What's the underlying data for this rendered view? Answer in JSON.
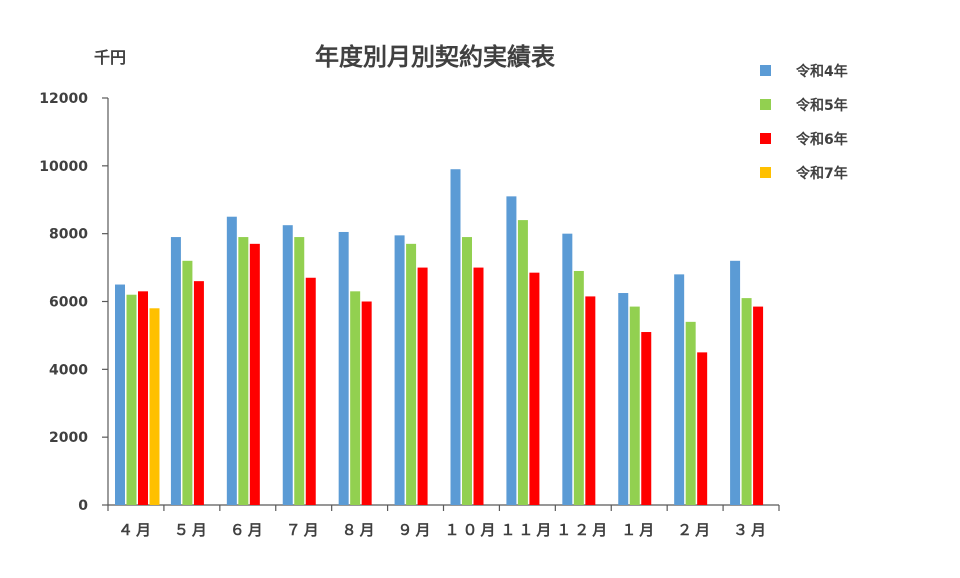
{
  "chart_data": {
    "type": "bar",
    "title": "年度別月別契約実績表",
    "unit_label": "千円",
    "ylim": [
      0,
      12000
    ],
    "yticks": [
      "0",
      "2000",
      "4000",
      "6000",
      "8000",
      "10000",
      "12000"
    ],
    "categories": [
      "４月",
      "５月",
      "６月",
      "７月",
      "８月",
      "９月",
      "１０月",
      "１１月",
      "１２月",
      "１月",
      "２月",
      "３月"
    ],
    "series": [
      {
        "name": "令和4年",
        "color": "#5B9BD5",
        "values": [
          6500,
          7900,
          8500,
          8250,
          8050,
          7950,
          9900,
          9100,
          8000,
          6250,
          6800,
          7200
        ]
      },
      {
        "name": "令和5年",
        "color": "#92D050",
        "values": [
          6200,
          7200,
          7900,
          7900,
          6300,
          7700,
          7900,
          8400,
          6900,
          5850,
          5400,
          6100
        ]
      },
      {
        "name": "令和6年",
        "color": "#FF0000",
        "values": [
          6300,
          6600,
          7700,
          6700,
          6000,
          7000,
          7000,
          6850,
          6150,
          5100,
          4500,
          5850
        ]
      },
      {
        "name": "令和7年",
        "color": "#FFC000",
        "values": [
          5800,
          null,
          null,
          null,
          null,
          null,
          null,
          null,
          null,
          null,
          null,
          null
        ]
      }
    ],
    "grid": false,
    "legend_position": "top-right"
  }
}
